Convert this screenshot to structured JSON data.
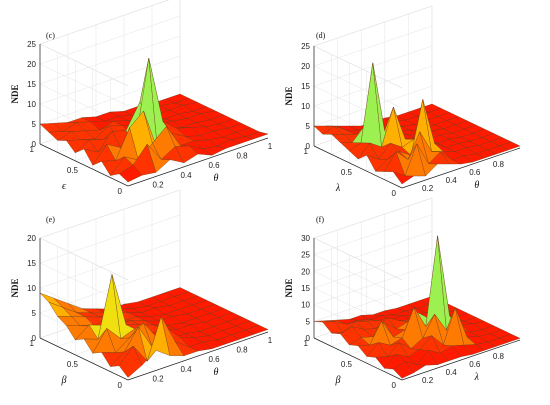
{
  "chart_data": [
    {
      "type": "surface",
      "panel_label": "(c)",
      "zlabel": "NDE",
      "xlabel": "θ",
      "ylabel": "ϵ",
      "x": [
        0,
        0.1,
        0.2,
        0.3,
        0.4,
        0.5,
        0.6,
        0.7,
        0.8,
        0.9,
        1
      ],
      "y": [
        0,
        0.1,
        0.2,
        0.3,
        0.4,
        0.5,
        0.6,
        0.7,
        0.8,
        0.9,
        1
      ],
      "x_ticks": [
        "0.2",
        "0.4",
        "0.6",
        "0.8",
        "1"
      ],
      "y_ticks": [
        "0",
        "0.5",
        "1"
      ],
      "z_ticks": [
        "0",
        "5",
        "10",
        "15",
        "20",
        "25"
      ],
      "zlim": [
        0,
        25
      ],
      "z": [
        [
          1,
          1.5,
          1,
          3,
          1,
          2,
          0.5,
          1,
          1,
          1,
          1
        ],
        [
          2,
          3,
          7,
          2,
          4,
          3,
          1,
          0.5,
          1,
          0.5,
          0.5
        ],
        [
          0.5,
          4,
          2,
          5,
          8,
          2,
          2,
          1,
          0.5,
          0.5,
          0.5
        ],
        [
          3,
          2,
          9,
          12,
          1,
          4,
          2,
          1,
          1,
          0.5,
          0.5
        ],
        [
          1,
          5,
          3,
          2,
          23,
          6,
          3,
          2,
          1,
          0.5,
          0.5
        ],
        [
          4,
          2,
          6,
          5,
          11,
          3,
          2,
          1,
          1,
          0.5,
          0.5
        ],
        [
          2,
          4,
          3,
          3,
          2,
          3,
          2,
          1.5,
          1,
          1,
          0.5
        ],
        [
          4,
          3,
          2,
          4,
          3,
          2,
          2,
          1,
          1,
          0.5,
          0.5
        ],
        [
          3,
          4,
          3,
          2,
          3,
          2,
          1,
          1,
          1,
          1,
          0.5
        ],
        [
          4,
          3,
          4,
          3,
          2,
          2,
          1,
          1,
          1,
          0.5,
          0.5
        ],
        [
          5,
          4,
          3,
          3,
          2,
          2,
          1,
          1,
          0.5,
          0.5,
          0.5
        ]
      ]
    },
    {
      "type": "surface",
      "panel_label": "(d)",
      "zlabel": "NDE",
      "xlabel": "θ",
      "ylabel": "λ",
      "x": [
        0,
        0.1,
        0.2,
        0.3,
        0.4,
        0.5,
        0.6,
        0.7,
        0.8,
        0.9,
        1
      ],
      "y": [
        0,
        0.1,
        0.2,
        0.3,
        0.4,
        0.5,
        0.6,
        0.7,
        0.8,
        0.9,
        1
      ],
      "x_ticks": [
        "0.2",
        "0.4",
        "0.6",
        "0.8"
      ],
      "y_ticks": [
        "0",
        "0.5",
        "1"
      ],
      "z_ticks": [
        "0",
        "5",
        "10",
        "15",
        "20",
        "25"
      ],
      "zlim": [
        0,
        25
      ],
      "z": [
        [
          1,
          2,
          1,
          3,
          2,
          1,
          0.5,
          0.5,
          0.5,
          0.5,
          0.5
        ],
        [
          3,
          1,
          8,
          2,
          4,
          1,
          1,
          0.5,
          0.5,
          0.5,
          0.5
        ],
        [
          2,
          6,
          3,
          9,
          3,
          2,
          1,
          1,
          0.5,
          0.5,
          0.5
        ],
        [
          1,
          3,
          4,
          2,
          15,
          3,
          1,
          1,
          0.5,
          0.5,
          0.5
        ],
        [
          4,
          2,
          5,
          3,
          4,
          2,
          1,
          1,
          0.5,
          0.5,
          0.5
        ],
        [
          2,
          5,
          3,
          12,
          3,
          2,
          1,
          1,
          0.5,
          0.5,
          0.5
        ],
        [
          3,
          4,
          23,
          5,
          3,
          2,
          1,
          1,
          0.5,
          0.5,
          0.5
        ],
        [
          4,
          3,
          6,
          4,
          2,
          2,
          1,
          0.5,
          0.5,
          0.5,
          0.5
        ],
        [
          5,
          4,
          3,
          3,
          2,
          1,
          1,
          0.5,
          0.5,
          0.5,
          0.5
        ],
        [
          4,
          5,
          3,
          2,
          2,
          1,
          1,
          0.5,
          0.5,
          0.5,
          0.5
        ],
        [
          5,
          4,
          3,
          2,
          1,
          1,
          1,
          0.5,
          0.5,
          0.5,
          0.5
        ]
      ]
    },
    {
      "type": "surface",
      "panel_label": "(e)",
      "zlabel": "NDE",
      "xlabel": "θ",
      "ylabel": "β",
      "x": [
        0,
        0.1,
        0.2,
        0.3,
        0.4,
        0.5,
        0.6,
        0.7,
        0.8,
        0.9,
        1
      ],
      "y": [
        0,
        0.1,
        0.2,
        0.3,
        0.4,
        0.5,
        0.6,
        0.7,
        0.8,
        0.9,
        1
      ],
      "x_ticks": [
        "0.2",
        "0.4",
        "0.6",
        "0.8",
        "1"
      ],
      "y_ticks": [
        "0",
        "0.5",
        "1"
      ],
      "z_ticks": [
        "0",
        "5",
        "10",
        "15",
        "20"
      ],
      "zlim": [
        0,
        20
      ],
      "z": [
        [
          0.5,
          2,
          4,
          2,
          1,
          1,
          0.5,
          0.5,
          0.5,
          0.5,
          0.5
        ],
        [
          2,
          5,
          1,
          9,
          3,
          1,
          1,
          0.5,
          0.5,
          0.5,
          0.5
        ],
        [
          1,
          3,
          7,
          2,
          5,
          2,
          1,
          0.5,
          0.5,
          0.5,
          0.5
        ],
        [
          3,
          2,
          4,
          6,
          2,
          1,
          1,
          0.5,
          0.5,
          0.5,
          0.5
        ],
        [
          2,
          6,
          3,
          4,
          2,
          2,
          1,
          1,
          0.5,
          0.5,
          0.5
        ],
        [
          4,
          3,
          15,
          4,
          3,
          2,
          1,
          0.5,
          0.5,
          0.5,
          0.5
        ],
        [
          3,
          5,
          4,
          3,
          3,
          2,
          1,
          1,
          0.5,
          0.5,
          0.5
        ],
        [
          5,
          4,
          3,
          4,
          2,
          2,
          1,
          0.5,
          0.5,
          0.5,
          0.5
        ],
        [
          6,
          5,
          4,
          3,
          3,
          2,
          1,
          1,
          0.5,
          0.5,
          0.5
        ],
        [
          8,
          6,
          4,
          3,
          2,
          2,
          1,
          0.5,
          0.5,
          0.5,
          0.5
        ],
        [
          9,
          7,
          5,
          3,
          2,
          1,
          1,
          0.5,
          0.5,
          0.5,
          0.5
        ]
      ]
    },
    {
      "type": "surface",
      "panel_label": "(f)",
      "zlabel": "NDE",
      "xlabel": "λ",
      "ylabel": "β",
      "x": [
        0,
        0.1,
        0.2,
        0.3,
        0.4,
        0.5,
        0.6,
        0.7,
        0.8,
        0.9,
        1
      ],
      "y": [
        0,
        0.1,
        0.2,
        0.3,
        0.4,
        0.5,
        0.6,
        0.7,
        0.8,
        0.9,
        1
      ],
      "x_ticks": [
        "0.2",
        "0.4",
        "0.6",
        "0.8"
      ],
      "y_ticks": [
        "0",
        "0.5",
        "1"
      ],
      "z_ticks": [
        "0",
        "5",
        "10",
        "15",
        "20",
        "25",
        "30"
      ],
      "zlim": [
        0,
        30
      ],
      "z": [
        [
          0.5,
          1,
          2,
          1,
          1,
          1,
          0.5,
          0.5,
          0.5,
          0.5,
          0.5
        ],
        [
          2,
          3,
          1,
          4,
          2,
          3,
          2,
          1,
          0.5,
          0.5,
          0.5
        ],
        [
          1,
          4,
          2,
          3,
          6,
          2,
          12,
          2,
          1,
          0.5,
          0.5
        ],
        [
          3,
          2,
          5,
          2,
          4,
          10,
          4,
          3,
          1,
          0.5,
          0.5
        ],
        [
          2,
          5,
          3,
          4,
          12,
          5,
          31,
          6,
          2,
          1,
          0.5
        ],
        [
          4,
          3,
          9,
          3,
          4,
          8,
          5,
          3,
          1,
          0.5,
          0.5
        ],
        [
          3,
          4,
          3,
          6,
          3,
          4,
          3,
          2,
          1,
          0.5,
          0.5
        ],
        [
          5,
          6,
          4,
          3,
          5,
          3,
          2,
          1,
          1,
          0.5,
          0.5
        ],
        [
          4,
          3,
          5,
          4,
          3,
          2,
          2,
          1,
          0.5,
          0.5,
          0.5
        ],
        [
          6,
          5,
          3,
          3,
          2,
          2,
          1,
          1,
          0.5,
          0.5,
          0.5
        ],
        [
          5,
          4,
          3,
          2,
          2,
          1,
          1,
          0.5,
          0.5,
          0.5,
          0.5
        ]
      ]
    }
  ],
  "colors": {
    "colormap": [
      "#00bfff",
      "#7fff7f",
      "#ffff00",
      "#ff9900",
      "#ff0000"
    ],
    "mesh_edge": "#6b3a1a",
    "box": "#d8d8d8",
    "axis": "#222222"
  }
}
